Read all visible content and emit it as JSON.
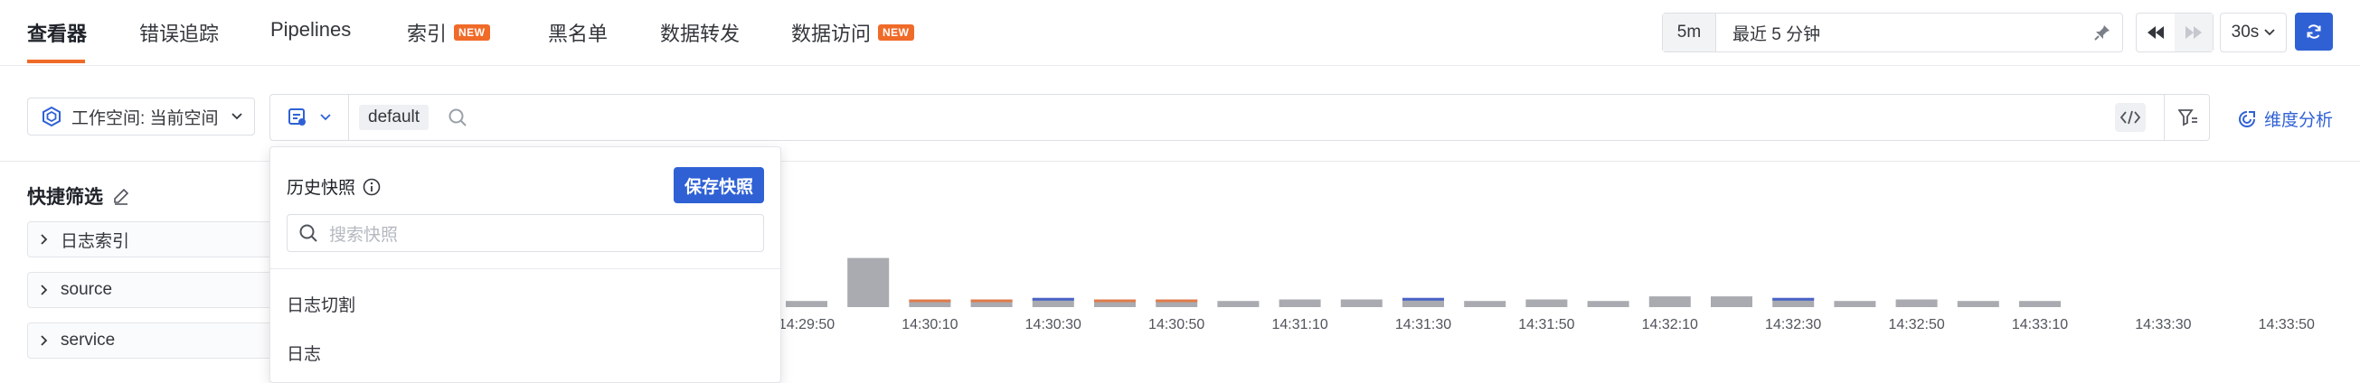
{
  "nav": {
    "tabs": [
      {
        "label": "查看器",
        "active": true
      },
      {
        "label": "错误追踪"
      },
      {
        "label": "Pipelines"
      },
      {
        "label": "索引",
        "badge": "NEW"
      },
      {
        "label": "黑名单"
      },
      {
        "label": "数据转发"
      },
      {
        "label": "数据访问",
        "badge": "NEW"
      }
    ]
  },
  "time": {
    "quick": "5m",
    "range": "最近 5 分钟",
    "interval": "30s"
  },
  "query": {
    "workspace": "工作空间: 当前空间",
    "index": "default",
    "dimension_link": "维度分析"
  },
  "quick_filter": {
    "title": "快捷筛选",
    "items": [
      "日志索引",
      "source",
      "service"
    ]
  },
  "snapshot": {
    "title": "历史快照",
    "save_label": "保存快照",
    "search_placeholder": "搜索快照",
    "items": [
      "日志切割",
      "日志"
    ]
  },
  "chart_data": {
    "type": "bar",
    "x_ticks": [
      "14:29:50",
      "14:30:10",
      "14:30:30",
      "14:30:50",
      "14:31:10",
      "14:31:30",
      "14:31:50",
      "14:32:10",
      "14:32:30",
      "14:32:50",
      "14:33:10",
      "14:33:30",
      "14:33:50"
    ],
    "bars": [
      {
        "gray": 4,
        "color": null
      },
      {
        "gray": 32,
        "color": null
      },
      {
        "gray": 5,
        "color": "#e07b4a"
      },
      {
        "gray": 5,
        "color": "#e07b4a"
      },
      {
        "gray": 6,
        "color": "#4a63c8"
      },
      {
        "gray": 5,
        "color": "#e07b4a"
      },
      {
        "gray": 5,
        "color": "#e07b4a"
      },
      {
        "gray": 4,
        "color": null
      },
      {
        "gray": 5,
        "color": null
      },
      {
        "gray": 5,
        "color": null
      },
      {
        "gray": 6,
        "color": "#4a63c8"
      },
      {
        "gray": 4,
        "color": null
      },
      {
        "gray": 5,
        "color": null
      },
      {
        "gray": 4,
        "color": null
      },
      {
        "gray": 7,
        "color": null
      },
      {
        "gray": 7,
        "color": null
      },
      {
        "gray": 6,
        "color": "#4a63c8"
      },
      {
        "gray": 4,
        "color": null
      },
      {
        "gray": 5,
        "color": null
      },
      {
        "gray": 4,
        "color": null
      },
      {
        "gray": 4,
        "color": null
      }
    ],
    "colors": {
      "gray": "#a9abb0"
    }
  }
}
